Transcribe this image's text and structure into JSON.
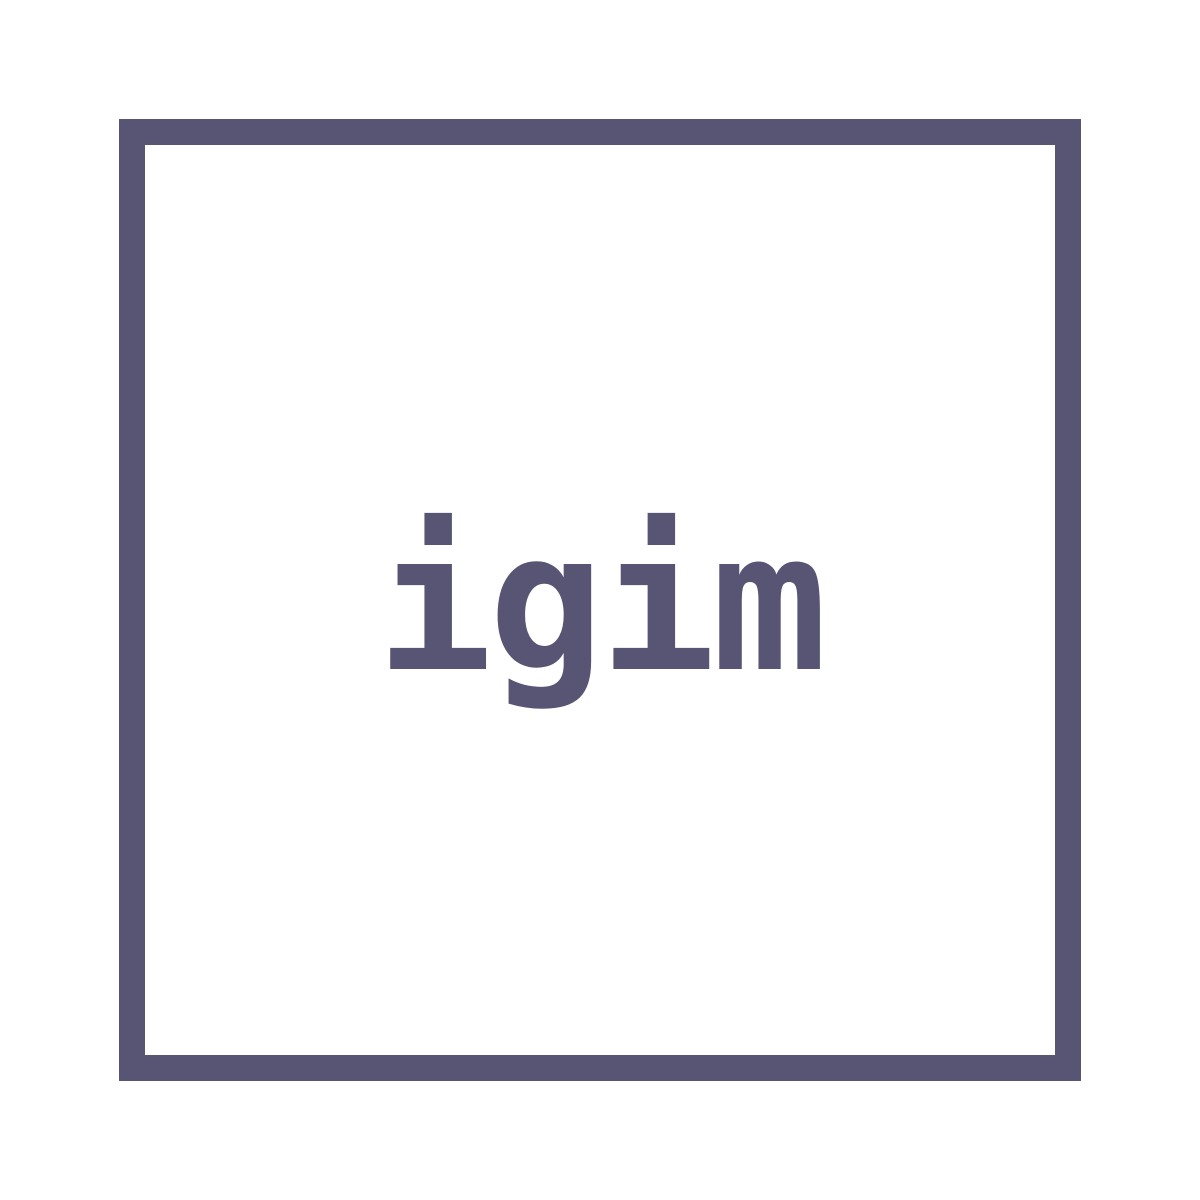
{
  "logo": {
    "text": "igim",
    "color": "#585474",
    "background": "#ffffff"
  }
}
